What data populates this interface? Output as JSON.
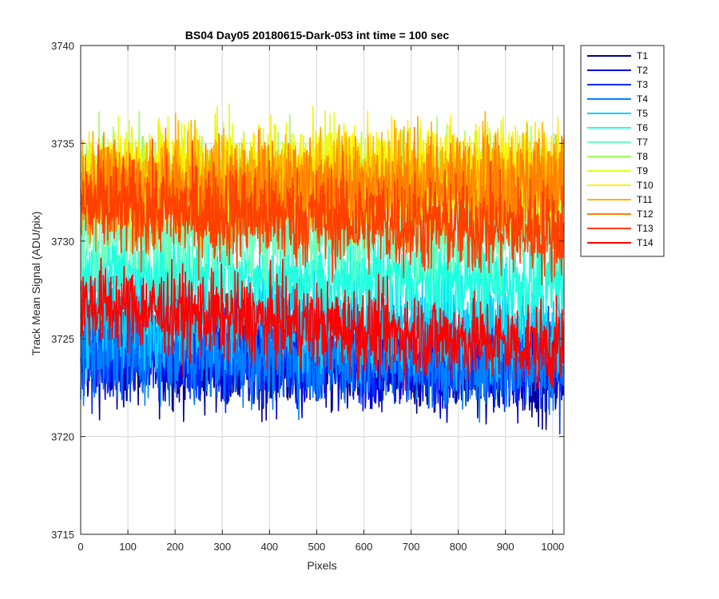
{
  "chart_data": {
    "type": "line",
    "title": "BS04 Day05 20180615-Dark-053 int time = 100 sec",
    "xlabel": "Pixels",
    "ylabel": "Track Mean Signal (ADU/pix)",
    "xlim": [
      0,
      1024
    ],
    "ylim": [
      3715,
      3740
    ],
    "xticks": [
      0,
      100,
      200,
      300,
      400,
      500,
      600,
      700,
      800,
      900,
      1000
    ],
    "yticks": [
      3715,
      3720,
      3725,
      3730,
      3735,
      3740
    ],
    "grid": true,
    "legend_position": "outside-top-right",
    "series": [
      {
        "name": "T1",
        "color": "#00008F",
        "mean_start": 3724.0,
        "mean_end": 3723.3,
        "noise": 1.2
      },
      {
        "name": "T2",
        "color": "#0000DF",
        "mean_start": 3724.3,
        "mean_end": 3723.6,
        "noise": 1.2
      },
      {
        "name": "T3",
        "color": "#0030FF",
        "mean_start": 3724.4,
        "mean_end": 3723.7,
        "noise": 1.2
      },
      {
        "name": "T4",
        "color": "#0080FF",
        "mean_start": 3724.6,
        "mean_end": 3723.9,
        "noise": 1.3
      },
      {
        "name": "T5",
        "color": "#00CFFF",
        "mean_start": 3726.5,
        "mean_end": 3725.5,
        "noise": 1.3
      },
      {
        "name": "T6",
        "color": "#20FFDF",
        "mean_start": 3728.5,
        "mean_end": 3727.8,
        "noise": 1.2
      },
      {
        "name": "T7",
        "color": "#70FFBF",
        "mean_start": 3730.5,
        "mean_end": 3730.5,
        "noise": 1.2
      },
      {
        "name": "T8",
        "color": "#9FFF60",
        "mean_start": 3733.0,
        "mean_end": 3733.0,
        "noise": 1.3
      },
      {
        "name": "T9",
        "color": "#DFFF20",
        "mean_start": 3733.2,
        "mean_end": 3733.2,
        "noise": 1.3
      },
      {
        "name": "T10",
        "color": "#FFEF00",
        "mean_start": 3733.4,
        "mean_end": 3733.4,
        "noise": 1.3
      },
      {
        "name": "T11",
        "color": "#FFB000",
        "mean_start": 3733.0,
        "mean_end": 3733.2,
        "noise": 1.3
      },
      {
        "name": "T12",
        "color": "#FF8000",
        "mean_start": 3732.5,
        "mean_end": 3732.8,
        "noise": 1.3
      },
      {
        "name": "T13",
        "color": "#FF4000",
        "mean_start": 3731.8,
        "mean_end": 3730.5,
        "noise": 1.3
      },
      {
        "name": "T14",
        "color": "#FF0000",
        "mean_start": 3726.8,
        "mean_end": 3724.5,
        "noise": 1.1
      }
    ]
  }
}
